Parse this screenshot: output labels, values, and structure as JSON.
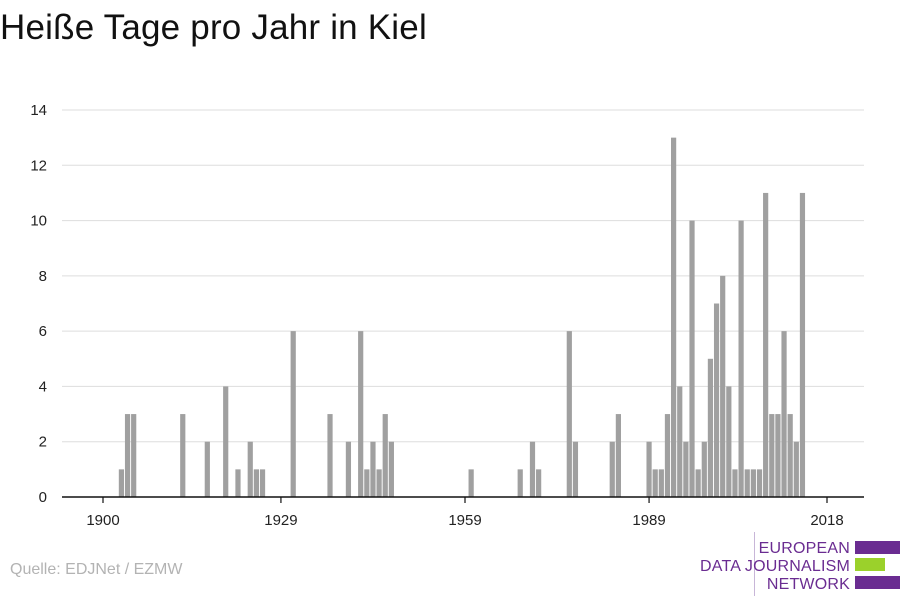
{
  "title": "Heiße Tage pro Jahr in Kiel",
  "source": "Quelle: EDJNet / EZMW",
  "logo": {
    "line1": "EUROPEAN",
    "line2": "DATA JOURNALISM",
    "line3": "NETWORK",
    "purple": "#6a2c91",
    "green": "#9bd12b"
  },
  "colors": {
    "bar": "#a0a0a0",
    "grid": "#dddddd",
    "axis": "#111111",
    "tick_text": "#222222"
  },
  "chart_data": {
    "type": "bar",
    "xlim": [
      1900,
      2018
    ],
    "ylim": [
      0,
      14
    ],
    "y_ticks": [
      0,
      2,
      4,
      6,
      8,
      10,
      12,
      14
    ],
    "x_ticks": [
      1900,
      1929,
      1959,
      1989,
      2018
    ],
    "grid": true,
    "xlabel": "",
    "ylabel": "",
    "x": [
      1903,
      1904,
      1905,
      1913,
      1917,
      1920,
      1922,
      1924,
      1925,
      1926,
      1931,
      1937,
      1940,
      1942,
      1943,
      1944,
      1945,
      1946,
      1947,
      1960,
      1968,
      1970,
      1971,
      1976,
      1977,
      1983,
      1984,
      1989,
      1990,
      1991,
      1992,
      1993,
      1994,
      1995,
      1996,
      1997,
      1998,
      1999,
      2000,
      2001,
      2002,
      2003,
      2004,
      2005,
      2006,
      2007,
      2008,
      2009,
      2010,
      2011,
      2012,
      2013,
      2014,
      2016
    ],
    "values": [
      1,
      3,
      3,
      3,
      2,
      4,
      1,
      2,
      1,
      1,
      6,
      3,
      2,
      6,
      1,
      2,
      1,
      3,
      2,
      1,
      1,
      2,
      1,
      6,
      2,
      2,
      3,
      2,
      1,
      1,
      3,
      13,
      4,
      2,
      10,
      1,
      2,
      5,
      7,
      8,
      4,
      1,
      10,
      1,
      1,
      1,
      11,
      3,
      3,
      6,
      3,
      2,
      11,
      0
    ]
  }
}
